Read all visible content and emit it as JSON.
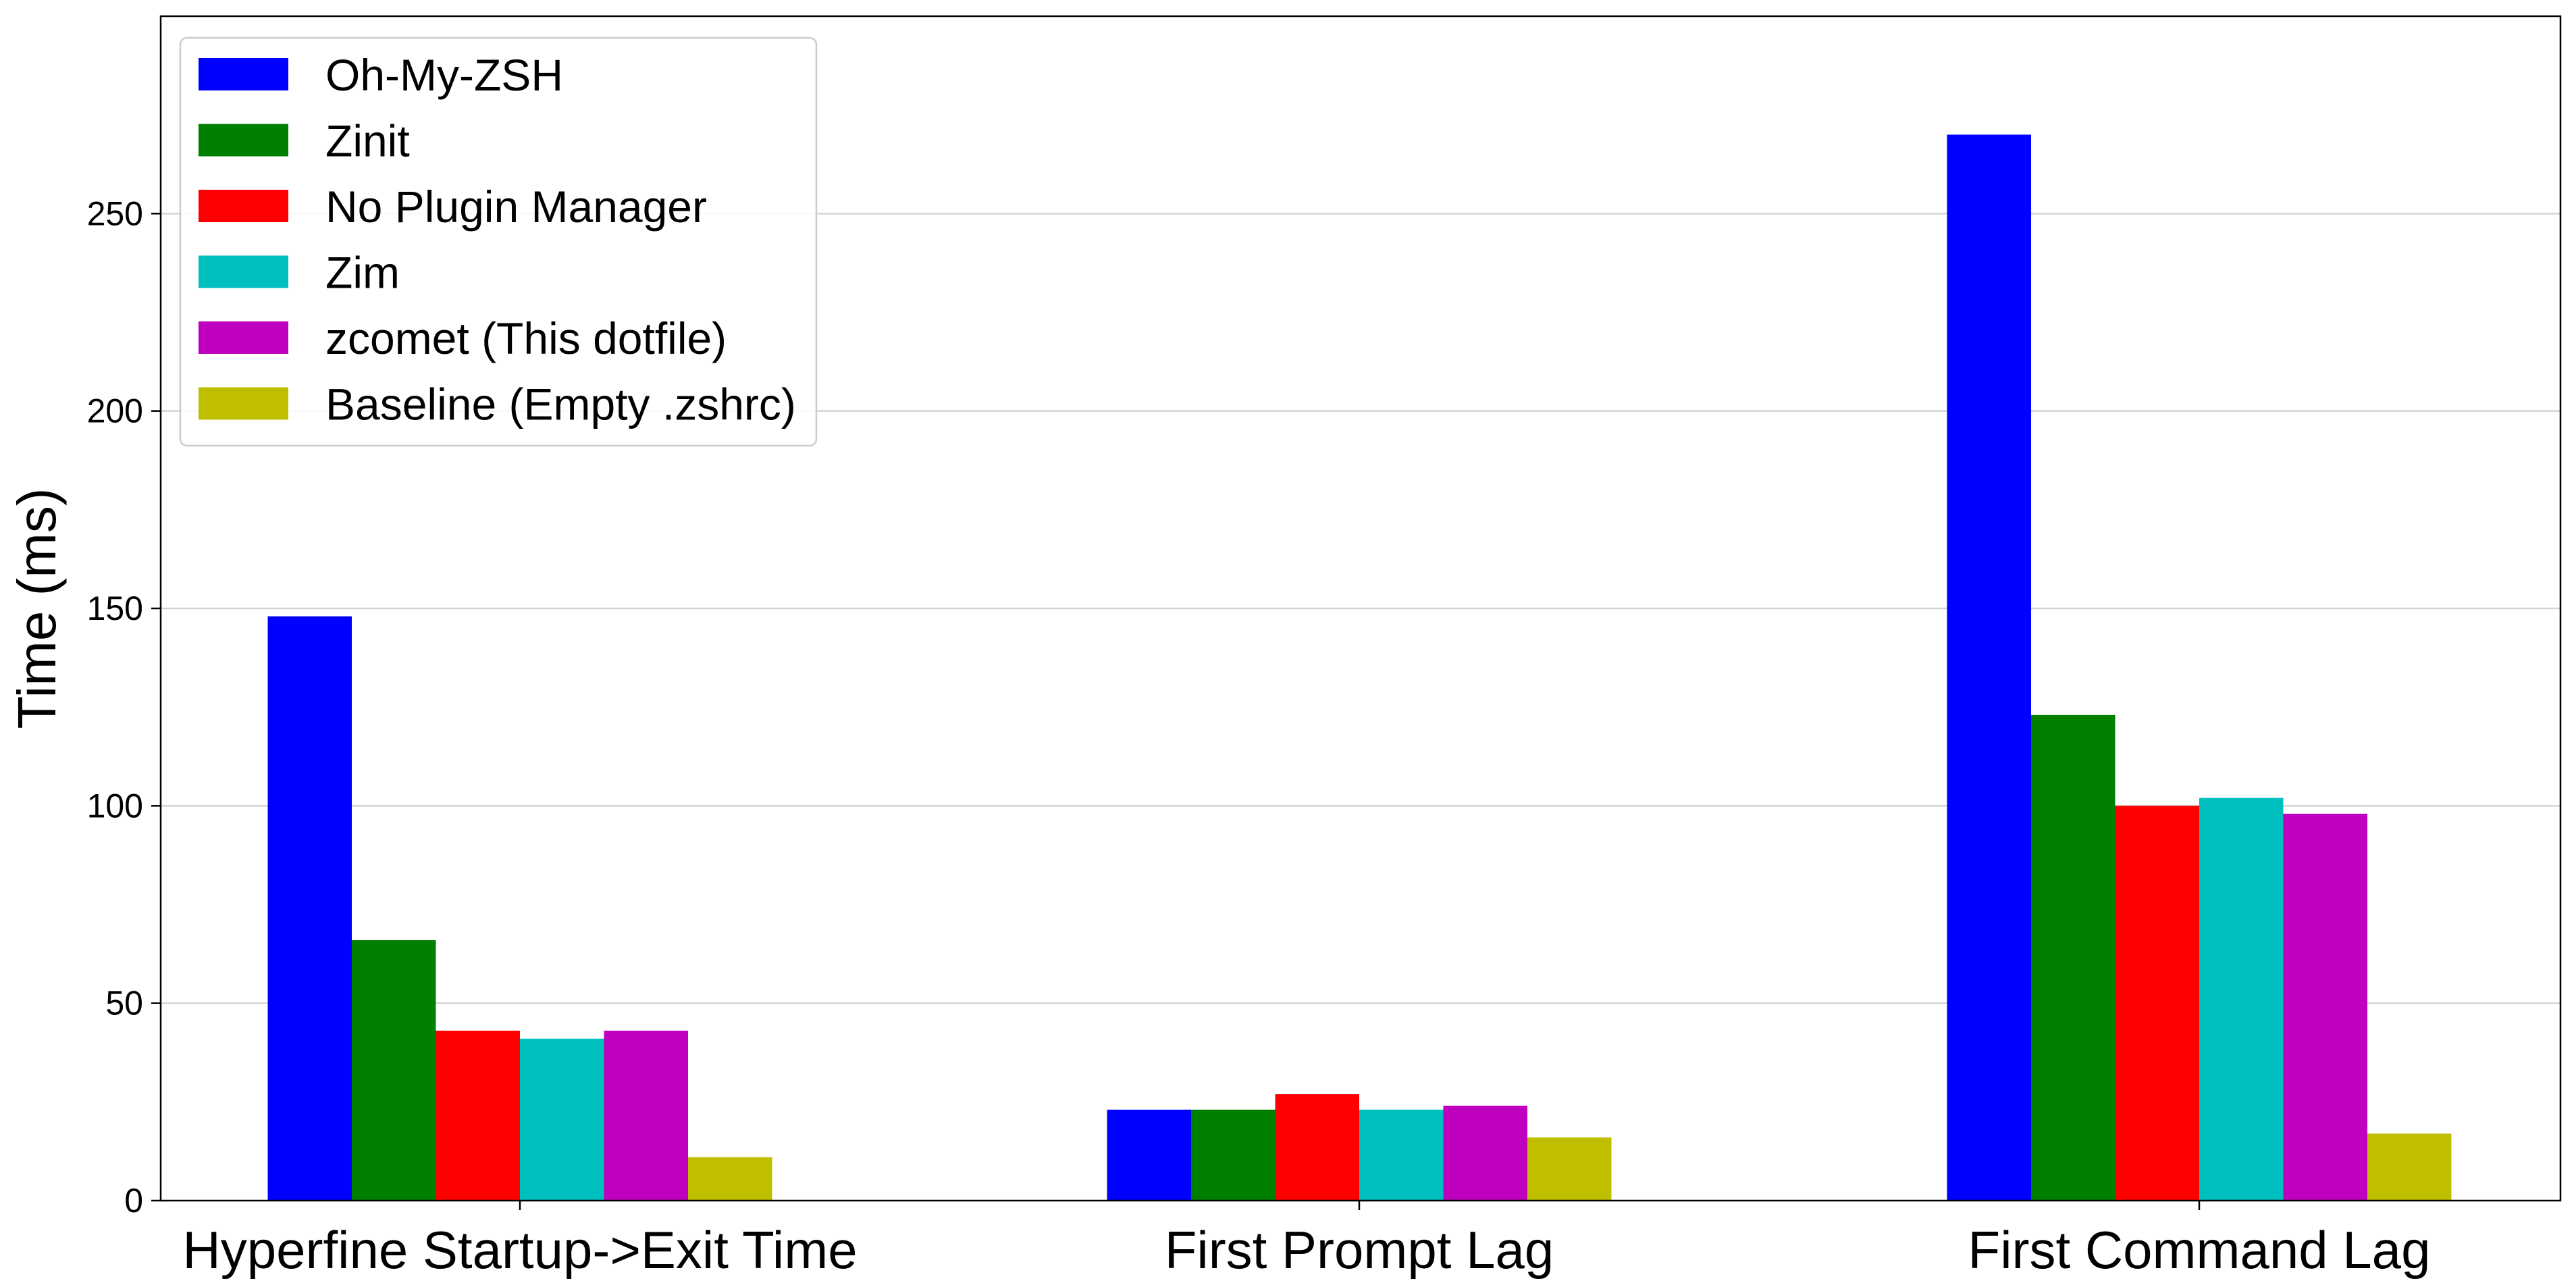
{
  "chart_data": {
    "type": "bar",
    "title": "",
    "xlabel": "",
    "ylabel": "Time (ms)",
    "ylim": [
      0,
      300
    ],
    "yticks": [
      0,
      50,
      100,
      150,
      200,
      250
    ],
    "grid": "horizontal",
    "legend_position": "upper-left",
    "categories": [
      "Hyperfine Startup->Exit Time",
      "First Prompt Lag",
      "First Command Lag"
    ],
    "series": [
      {
        "name": "Oh-My-ZSH",
        "color": "#0000ff",
        "values": [
          148,
          23,
          270
        ]
      },
      {
        "name": "Zinit",
        "color": "#008000",
        "values": [
          66,
          23,
          123
        ]
      },
      {
        "name": "No Plugin Manager",
        "color": "#ff0000",
        "values": [
          43,
          27,
          100
        ]
      },
      {
        "name": "Zim",
        "color": "#00bfbf",
        "values": [
          41,
          23,
          102
        ]
      },
      {
        "name": "zcomet (This dotfile)",
        "color": "#bf00bf",
        "values": [
          43,
          24,
          98
        ]
      },
      {
        "name": "Baseline (Empty .zshrc)",
        "color": "#bfbf00",
        "values": [
          11,
          16,
          17
        ]
      }
    ]
  }
}
